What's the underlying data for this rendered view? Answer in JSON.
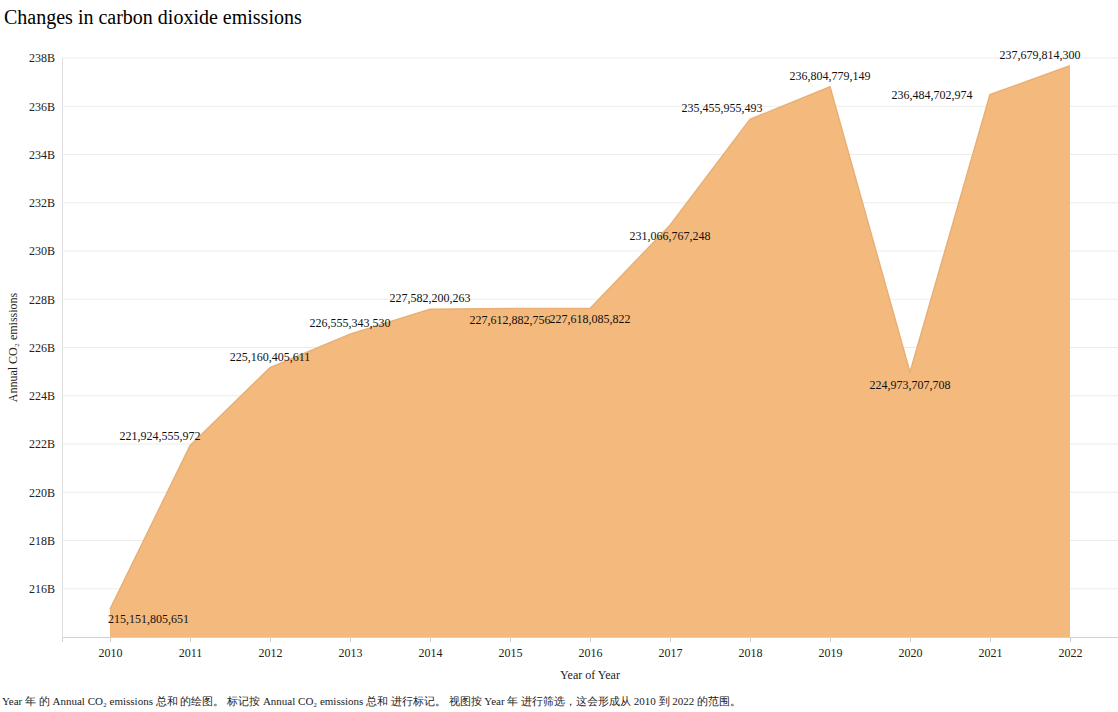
{
  "chart_data": {
    "type": "area",
    "title": "Changes in carbon dioxide emissions",
    "x_label": "Year of Year",
    "y_label": "Annual CO₂ emissions",
    "caption": "Year 年 的 Annual CO₂ emissions 总和 的绘图。 标记按 Annual CO₂ emissions 总和 进行标记。 视图按 Year 年 进行筛选，这会形成从 2010 到 2022 的范围。",
    "x": [
      2010,
      2011,
      2012,
      2013,
      2014,
      2015,
      2016,
      2017,
      2018,
      2019,
      2020,
      2021,
      2022
    ],
    "values": [
      215151805651,
      221924555972,
      225160405611,
      226555343530,
      227582200263,
      227612882756,
      227618085822,
      231066767248,
      235455955493,
      236804779149,
      224973707708,
      236484702974,
      237679814300
    ],
    "value_labels": [
      "215,151,805,651",
      "221,924,555,972",
      "225,160,405,611",
      "226,555,343,530",
      "227,582,200,263",
      "227,612,882,756",
      "227,618,085,822",
      "231,066,767,248",
      "235,455,955,493",
      "236,804,779,149",
      "224,973,707,708",
      "236,484,702,974",
      "237,679,814,300"
    ],
    "color": "#f4b97c",
    "xlim": [
      2009.4,
      2022.6
    ],
    "xticks": [
      2010,
      2011,
      2012,
      2013,
      2014,
      2015,
      2016,
      2017,
      2018,
      2019,
      2020,
      2021,
      2022
    ],
    "ylim": [
      214000000000,
      238000000000
    ],
    "yticks": [
      {
        "value": 216000000000,
        "label": "216B"
      },
      {
        "value": 218000000000,
        "label": "218B"
      },
      {
        "value": 220000000000,
        "label": "220B"
      },
      {
        "value": 222000000000,
        "label": "222B"
      },
      {
        "value": 224000000000,
        "label": "224B"
      },
      {
        "value": 226000000000,
        "label": "226B"
      },
      {
        "value": 228000000000,
        "label": "228B"
      },
      {
        "value": 230000000000,
        "label": "230B"
      },
      {
        "value": 232000000000,
        "label": "232B"
      },
      {
        "value": 234000000000,
        "label": "234B"
      },
      {
        "value": 236000000000,
        "label": "236B"
      },
      {
        "value": 238000000000,
        "label": "238B"
      }
    ],
    "grid": true,
    "data_labels": true
  }
}
